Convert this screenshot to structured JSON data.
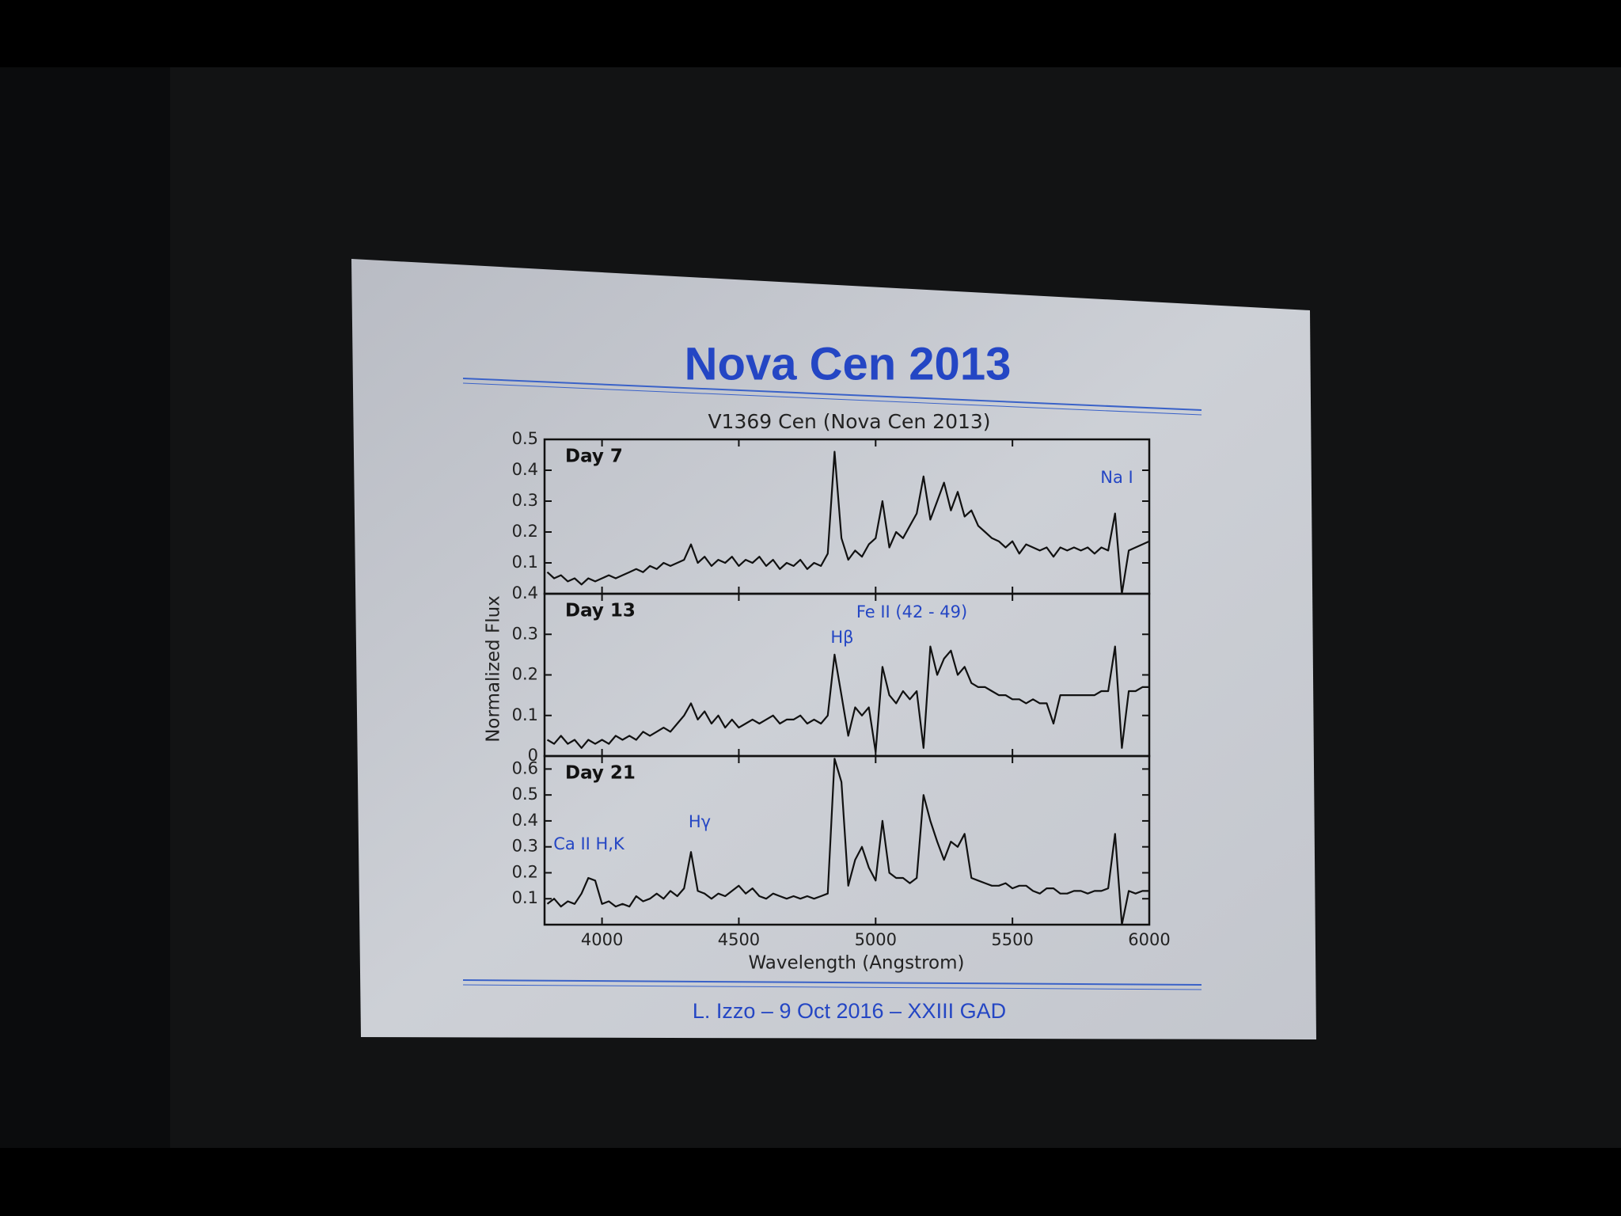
{
  "slide": {
    "title": "Nova Cen 2013",
    "footer": "L. Izzo – 9 Oct 2016 – XXIII GAD"
  },
  "figure": {
    "title": "V1369 Cen (Nova Cen 2013)",
    "x_label": "Wavelength (Angstrom)",
    "y_label": "Normalized Flux"
  },
  "chart_data": [
    {
      "type": "line",
      "label": "Day 7",
      "color": "#111111",
      "annotations": [
        "Na I"
      ],
      "x": [
        3800,
        3825,
        3850,
        3875,
        3900,
        3925,
        3950,
        3975,
        4000,
        4025,
        4050,
        4075,
        4100,
        4125,
        4150,
        4175,
        4200,
        4225,
        4250,
        4275,
        4300,
        4325,
        4350,
        4375,
        4400,
        4425,
        4450,
        4475,
        4500,
        4525,
        4550,
        4575,
        4600,
        4625,
        4650,
        4675,
        4700,
        4725,
        4750,
        4775,
        4800,
        4825,
        4850,
        4875,
        4900,
        4925,
        4950,
        4975,
        5000,
        5025,
        5050,
        5075,
        5100,
        5125,
        5150,
        5175,
        5200,
        5225,
        5250,
        5275,
        5300,
        5325,
        5350,
        5375,
        5400,
        5425,
        5450,
        5475,
        5500,
        5525,
        5550,
        5575,
        5600,
        5625,
        5650,
        5675,
        5700,
        5725,
        5750,
        5775,
        5800,
        5825,
        5850,
        5875,
        5900,
        5925,
        5950,
        5975,
        6000
      ],
      "values": [
        0.07,
        0.05,
        0.06,
        0.04,
        0.05,
        0.03,
        0.05,
        0.04,
        0.05,
        0.06,
        0.05,
        0.06,
        0.07,
        0.08,
        0.07,
        0.09,
        0.08,
        0.1,
        0.09,
        0.1,
        0.11,
        0.16,
        0.1,
        0.12,
        0.09,
        0.11,
        0.1,
        0.12,
        0.09,
        0.11,
        0.1,
        0.12,
        0.09,
        0.11,
        0.08,
        0.1,
        0.09,
        0.11,
        0.08,
        0.1,
        0.09,
        0.13,
        0.46,
        0.18,
        0.11,
        0.14,
        0.12,
        0.16,
        0.18,
        0.3,
        0.15,
        0.2,
        0.18,
        0.22,
        0.26,
        0.38,
        0.24,
        0.3,
        0.36,
        0.27,
        0.33,
        0.25,
        0.27,
        0.22,
        0.2,
        0.18,
        0.17,
        0.15,
        0.17,
        0.13,
        0.16,
        0.15,
        0.14,
        0.15,
        0.12,
        0.15,
        0.14,
        0.15,
        0.14,
        0.15,
        0.13,
        0.15,
        0.14,
        0.26,
        0.0,
        0.14,
        0.15,
        0.16,
        0.17
      ],
      "xlim": [
        3790,
        6000
      ],
      "ylim": [
        0.0,
        0.5
      ],
      "yticks": [
        0.1,
        0.2,
        0.3,
        0.4,
        0.5
      ]
    },
    {
      "type": "line",
      "label": "Day 13",
      "color": "#111111",
      "annotations": [
        "Fe II (42 - 49)",
        "Hβ"
      ],
      "x": [
        3800,
        3825,
        3850,
        3875,
        3900,
        3925,
        3950,
        3975,
        4000,
        4025,
        4050,
        4075,
        4100,
        4125,
        4150,
        4175,
        4200,
        4225,
        4250,
        4275,
        4300,
        4325,
        4350,
        4375,
        4400,
        4425,
        4450,
        4475,
        4500,
        4525,
        4550,
        4575,
        4600,
        4625,
        4650,
        4675,
        4700,
        4725,
        4750,
        4775,
        4800,
        4825,
        4850,
        4875,
        4900,
        4925,
        4950,
        4975,
        5000,
        5025,
        5050,
        5075,
        5100,
        5125,
        5150,
        5175,
        5200,
        5225,
        5250,
        5275,
        5300,
        5325,
        5350,
        5375,
        5400,
        5425,
        5450,
        5475,
        5500,
        5525,
        5550,
        5575,
        5600,
        5625,
        5650,
        5675,
        5700,
        5725,
        5750,
        5775,
        5800,
        5825,
        5850,
        5875,
        5900,
        5925,
        5950,
        5975,
        6000
      ],
      "values": [
        0.04,
        0.03,
        0.05,
        0.03,
        0.04,
        0.02,
        0.04,
        0.03,
        0.04,
        0.03,
        0.05,
        0.04,
        0.05,
        0.04,
        0.06,
        0.05,
        0.06,
        0.07,
        0.06,
        0.08,
        0.1,
        0.13,
        0.09,
        0.11,
        0.08,
        0.1,
        0.07,
        0.09,
        0.07,
        0.08,
        0.09,
        0.08,
        0.09,
        0.1,
        0.08,
        0.09,
        0.09,
        0.1,
        0.08,
        0.09,
        0.08,
        0.1,
        0.25,
        0.15,
        0.05,
        0.12,
        0.1,
        0.12,
        0.01,
        0.22,
        0.15,
        0.13,
        0.16,
        0.14,
        0.16,
        0.02,
        0.27,
        0.2,
        0.24,
        0.26,
        0.2,
        0.22,
        0.18,
        0.17,
        0.17,
        0.16,
        0.15,
        0.15,
        0.14,
        0.14,
        0.13,
        0.14,
        0.13,
        0.13,
        0.08,
        0.15,
        0.15,
        0.15,
        0.15,
        0.15,
        0.15,
        0.16,
        0.16,
        0.27,
        0.02,
        0.16,
        0.16,
        0.17,
        0.17
      ],
      "xlim": [
        3790,
        6000
      ],
      "ylim": [
        0.0,
        0.4
      ],
      "yticks": [
        0.0,
        0.1,
        0.2,
        0.3,
        0.4
      ]
    },
    {
      "type": "line",
      "label": "Day 21",
      "color": "#111111",
      "annotations": [
        "Hγ",
        "Ca II H,K"
      ],
      "x": [
        3800,
        3825,
        3850,
        3875,
        3900,
        3925,
        3950,
        3975,
        4000,
        4025,
        4050,
        4075,
        4100,
        4125,
        4150,
        4175,
        4200,
        4225,
        4250,
        4275,
        4300,
        4325,
        4350,
        4375,
        4400,
        4425,
        4450,
        4475,
        4500,
        4525,
        4550,
        4575,
        4600,
        4625,
        4650,
        4675,
        4700,
        4725,
        4750,
        4775,
        4800,
        4825,
        4850,
        4875,
        4900,
        4925,
        4950,
        4975,
        5000,
        5025,
        5050,
        5075,
        5100,
        5125,
        5150,
        5175,
        5200,
        5225,
        5250,
        5275,
        5300,
        5325,
        5350,
        5375,
        5400,
        5425,
        5450,
        5475,
        5500,
        5525,
        5550,
        5575,
        5600,
        5625,
        5650,
        5675,
        5700,
        5725,
        5750,
        5775,
        5800,
        5825,
        5850,
        5875,
        5900,
        5925,
        5950,
        5975,
        6000
      ],
      "values": [
        0.08,
        0.1,
        0.07,
        0.09,
        0.08,
        0.12,
        0.18,
        0.17,
        0.08,
        0.09,
        0.07,
        0.08,
        0.07,
        0.11,
        0.09,
        0.1,
        0.12,
        0.1,
        0.13,
        0.11,
        0.14,
        0.28,
        0.13,
        0.12,
        0.1,
        0.12,
        0.11,
        0.13,
        0.15,
        0.12,
        0.14,
        0.11,
        0.1,
        0.12,
        0.11,
        0.1,
        0.11,
        0.1,
        0.11,
        0.1,
        0.11,
        0.12,
        0.64,
        0.55,
        0.15,
        0.25,
        0.3,
        0.22,
        0.17,
        0.4,
        0.2,
        0.18,
        0.18,
        0.16,
        0.18,
        0.5,
        0.4,
        0.32,
        0.25,
        0.32,
        0.3,
        0.35,
        0.18,
        0.17,
        0.16,
        0.15,
        0.15,
        0.16,
        0.14,
        0.15,
        0.15,
        0.13,
        0.12,
        0.14,
        0.14,
        0.12,
        0.12,
        0.13,
        0.13,
        0.12,
        0.13,
        0.13,
        0.14,
        0.35,
        0.0,
        0.13,
        0.12,
        0.13,
        0.13
      ],
      "xlim": [
        3790,
        6000
      ],
      "ylim": [
        0.0,
        0.65
      ],
      "yticks": [
        0.1,
        0.2,
        0.3,
        0.4,
        0.5,
        0.6
      ],
      "xticks": [
        4000,
        4500,
        5000,
        5500,
        6000
      ]
    }
  ]
}
